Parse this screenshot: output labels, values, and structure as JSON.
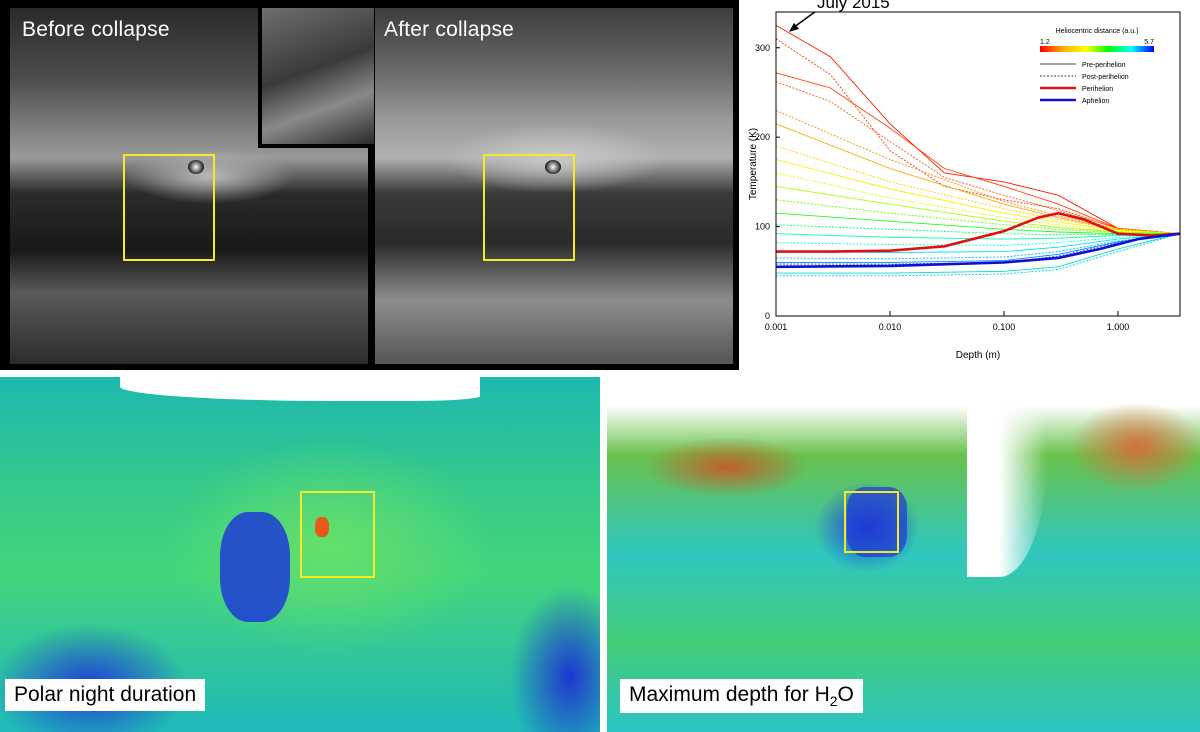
{
  "photos": {
    "before_label": "Before collapse",
    "after_label": "After collapse",
    "highlight_color": "#f5e92a"
  },
  "maps": {
    "left_label": "Polar night duration",
    "right_label_main": "Maximum depth for H",
    "right_label_sub": "2",
    "right_label_tail": "O"
  },
  "chart_data": {
    "type": "line",
    "title": "",
    "xlabel": "Depth (m)",
    "ylabel": "Temperature (K)",
    "x_scale": "log",
    "xlim": [
      0.001,
      3.5
    ],
    "ylim": [
      0,
      340
    ],
    "x_ticks": [
      0.001,
      0.01,
      0.1,
      1.0
    ],
    "x_tick_labels": [
      "0.001",
      "0.010",
      "0.100",
      "1.000"
    ],
    "y_ticks": [
      0,
      100,
      200,
      300
    ],
    "annotation": {
      "text": "July 2015",
      "x": 0.0013,
      "y": 320
    },
    "legend": {
      "title": "Heliocentric distance (a.u.)",
      "colorbar_min": "1.2",
      "colorbar_max": "5.7",
      "colorbar_colors": [
        "#ff0000",
        "#ffaa00",
        "#ffff00",
        "#00ff00",
        "#00ffff",
        "#0000ff"
      ],
      "entries": [
        {
          "label": "Pre-perihelion",
          "style": "solid",
          "color": "#000000"
        },
        {
          "label": "Post-perihelion",
          "style": "dashed",
          "color": "#000000"
        },
        {
          "label": "Perihelion",
          "style": "bold",
          "color": "#e01010"
        },
        {
          "label": "Aphelion",
          "style": "bold",
          "color": "#1010d0"
        }
      ],
      "placement": "top-right"
    },
    "series": [
      {
        "id": "perihelion",
        "color": "#e01010",
        "bold": true,
        "x": [
          0.001,
          0.003,
          0.01,
          0.03,
          0.1,
          0.2,
          0.3,
          0.5,
          1.0,
          2.0,
          3.5
        ],
        "y": [
          72,
          72,
          73,
          78,
          95,
          110,
          115,
          108,
          92,
          90,
          92
        ]
      },
      {
        "id": "aphelion",
        "color": "#1010d0",
        "bold": true,
        "x": [
          0.001,
          0.01,
          0.1,
          0.3,
          0.7,
          1.5,
          3.5
        ],
        "y": [
          55,
          56,
          60,
          65,
          75,
          86,
          92
        ]
      },
      {
        "id": "pre-1",
        "color": "#ff1a00",
        "dashed": false,
        "x": [
          0.001,
          0.003,
          0.01,
          0.03,
          0.1,
          0.3,
          1.0,
          3.5
        ],
        "y": [
          325,
          290,
          215,
          160,
          150,
          135,
          98,
          92
        ]
      },
      {
        "id": "post-1",
        "color": "#ff3300",
        "dashed": true,
        "x": [
          0.001,
          0.003,
          0.01,
          0.03,
          0.1,
          0.3,
          1.0,
          3.5
        ],
        "y": [
          310,
          270,
          185,
          145,
          130,
          120,
          98,
          92
        ]
      },
      {
        "id": "pre-2",
        "color": "#ff4400",
        "dashed": false,
        "x": [
          0.001,
          0.003,
          0.01,
          0.03,
          0.1,
          0.3,
          1.0,
          3.5
        ],
        "y": [
          272,
          255,
          210,
          165,
          145,
          125,
          98,
          92
        ]
      },
      {
        "id": "post-2",
        "color": "#ff5a00",
        "dashed": true,
        "x": [
          0.001,
          0.003,
          0.01,
          0.03,
          0.1,
          0.3,
          1.0,
          3.5
        ],
        "y": [
          262,
          240,
          195,
          155,
          135,
          118,
          98,
          92
        ]
      },
      {
        "id": "post-3",
        "color": "#ff8a00",
        "dashed": true,
        "x": [
          0.001,
          0.01,
          0.1,
          0.3,
          1.0,
          3.5
        ],
        "y": [
          230,
          175,
          128,
          112,
          98,
          92
        ]
      },
      {
        "id": "pre-3",
        "color": "#ffaa00",
        "dashed": false,
        "x": [
          0.001,
          0.01,
          0.1,
          0.3,
          1.0,
          3.5
        ],
        "y": [
          215,
          165,
          125,
          110,
          97,
          92
        ]
      },
      {
        "id": "post-4",
        "color": "#ffcc00",
        "dashed": true,
        "x": [
          0.001,
          0.01,
          0.1,
          0.3,
          1.0,
          3.5
        ],
        "y": [
          190,
          150,
          120,
          108,
          97,
          92
        ]
      },
      {
        "id": "pre-4",
        "color": "#ffee00",
        "dashed": false,
        "x": [
          0.001,
          0.01,
          0.1,
          0.3,
          1.0,
          3.5
        ],
        "y": [
          175,
          142,
          115,
          105,
          96,
          92
        ]
      },
      {
        "id": "post-5",
        "color": "#ddff00",
        "dashed": true,
        "x": [
          0.001,
          0.01,
          0.1,
          0.3,
          1.0,
          3.5
        ],
        "y": [
          160,
          132,
          110,
          102,
          95,
          92
        ]
      },
      {
        "id": "pre-5",
        "color": "#aaff00",
        "dashed": false,
        "x": [
          0.001,
          0.01,
          0.1,
          0.3,
          1.0,
          3.5
        ],
        "y": [
          145,
          125,
          106,
          99,
          94,
          92
        ]
      },
      {
        "id": "post-6",
        "color": "#66ff00",
        "dashed": true,
        "x": [
          0.001,
          0.01,
          0.1,
          0.3,
          1.0,
          3.5
        ],
        "y": [
          130,
          115,
          102,
          97,
          93,
          92
        ]
      },
      {
        "id": "pre-6",
        "color": "#22ff22",
        "dashed": false,
        "x": [
          0.001,
          0.01,
          0.1,
          0.3,
          1.0,
          3.5
        ],
        "y": [
          115,
          106,
          97,
          94,
          92,
          92
        ]
      },
      {
        "id": "post-7",
        "color": "#00ff66",
        "dashed": true,
        "x": [
          0.001,
          0.01,
          0.1,
          0.3,
          1.0,
          3.5
        ],
        "y": [
          102,
          97,
          92,
          91,
          91,
          92
        ]
      },
      {
        "id": "pre-7",
        "color": "#00ffaa",
        "dashed": false,
        "x": [
          0.001,
          0.01,
          0.1,
          0.3,
          1.0,
          3.5
        ],
        "y": [
          92,
          88,
          86,
          87,
          90,
          92
        ]
      },
      {
        "id": "post-8",
        "color": "#00ffdd",
        "dashed": true,
        "x": [
          0.001,
          0.01,
          0.1,
          0.3,
          1.0,
          3.5
        ],
        "y": [
          82,
          80,
          79,
          82,
          88,
          92
        ]
      },
      {
        "id": "pre-8",
        "color": "#00e5ff",
        "dashed": false,
        "x": [
          0.001,
          0.01,
          0.1,
          0.3,
          1.0,
          3.5
        ],
        "y": [
          72,
          71,
          72,
          77,
          86,
          92
        ]
      },
      {
        "id": "post-9",
        "color": "#00bbff",
        "dashed": true,
        "x": [
          0.001,
          0.01,
          0.1,
          0.3,
          1.0,
          3.5
        ],
        "y": [
          65,
          64,
          66,
          72,
          84,
          92
        ]
      },
      {
        "id": "pre-9",
        "color": "#0088ff",
        "dashed": false,
        "x": [
          0.001,
          0.01,
          0.1,
          0.3,
          1.0,
          3.5
        ],
        "y": [
          60,
          60,
          62,
          69,
          83,
          92
        ]
      },
      {
        "id": "post-10",
        "color": "#0055ff",
        "dashed": true,
        "x": [
          0.001,
          0.01,
          0.1,
          0.3,
          1.0,
          3.5
        ],
        "y": [
          58,
          58,
          60,
          67,
          82,
          92
        ]
      },
      {
        "id": "pre-10",
        "color": "#00ddcc",
        "dashed": false,
        "x": [
          0.001,
          0.01,
          0.1,
          0.3,
          1.0,
          3.5
        ],
        "y": [
          48,
          48,
          50,
          55,
          75,
          92
        ]
      },
      {
        "id": "post-11",
        "color": "#00ccee",
        "dashed": true,
        "x": [
          0.001,
          0.01,
          0.1,
          0.3,
          1.0,
          3.5
        ],
        "y": [
          45,
          45,
          47,
          52,
          72,
          92
        ]
      }
    ]
  }
}
